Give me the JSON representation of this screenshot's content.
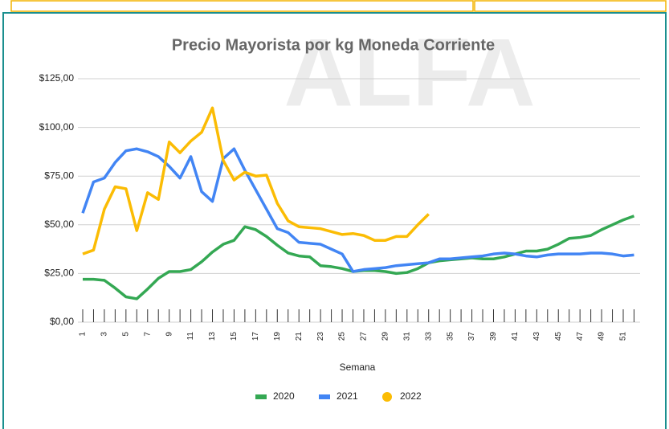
{
  "watermark": "ALFA",
  "chart_data": {
    "type": "line",
    "title": "Precio Mayorista por kg Moneda Corriente",
    "x_label": "Semana",
    "categories": [
      "1",
      null,
      "3",
      null,
      "5",
      null,
      "7",
      null,
      "9",
      null,
      "11",
      null,
      "13",
      null,
      "15",
      null,
      "17",
      null,
      "19",
      null,
      "21",
      null,
      "23",
      null,
      "25",
      null,
      "27",
      null,
      "29",
      null,
      "31",
      null,
      "33",
      null,
      "35",
      null,
      "37",
      null,
      "39",
      null,
      "41",
      null,
      "43",
      null,
      "45",
      null,
      "47",
      null,
      "49",
      null,
      "51",
      null
    ],
    "series": [
      {
        "name": "2020",
        "color": "#34a853",
        "values": [
          22,
          22,
          21.5,
          17.5,
          13,
          12,
          17,
          22.5,
          26,
          26,
          27,
          31,
          36,
          40,
          42,
          49,
          47.5,
          44,
          39.5,
          35.5,
          34,
          33.5,
          29,
          28.5,
          27.5,
          26,
          26.5,
          26.5,
          26,
          25,
          25.5,
          27.5,
          30.5,
          31.5,
          32,
          32.5,
          33,
          32.5,
          32.5,
          33.5,
          35,
          36.5,
          36.5,
          37.5,
          40,
          43,
          43.5,
          44.5,
          47.5,
          50,
          52.5,
          54.5
        ]
      },
      {
        "name": "2021",
        "color": "#4285f4",
        "values": [
          56,
          72,
          74,
          82,
          88,
          89,
          87.5,
          85,
          80,
          74,
          85,
          67,
          62,
          84,
          89,
          78,
          68,
          58,
          48,
          46,
          41,
          40.5,
          40,
          37.5,
          35,
          26,
          27,
          27.5,
          28,
          29,
          29.5,
          30,
          30.5,
          32.5,
          32.5,
          33,
          33.5,
          34,
          35,
          35.5,
          35,
          34,
          33.5,
          34.5,
          35,
          35,
          35,
          35.5,
          35.5,
          35,
          34,
          34.5
        ]
      },
      {
        "name": "2022",
        "color": "#fbbc04",
        "values": [
          35,
          37,
          58,
          69.5,
          68.5,
          47,
          66.5,
          63,
          92.5,
          87,
          93,
          97.5,
          110,
          83,
          73,
          77,
          75,
          75.5,
          61,
          52,
          49,
          48.5,
          48,
          46.5,
          45,
          45.5,
          44.5,
          42,
          42,
          44,
          44,
          50,
          55.5,
          null,
          null,
          null,
          null,
          null,
          null,
          null,
          null,
          null,
          null,
          null,
          null,
          null,
          null,
          null,
          null,
          null,
          null,
          null
        ]
      }
    ],
    "ylim": [
      0,
      125
    ],
    "yticks": [
      {
        "value": 0,
        "label": "$0,00"
      },
      {
        "value": 25,
        "label": "$25,00"
      },
      {
        "value": 50,
        "label": "$50,00"
      },
      {
        "value": 75,
        "label": "$75,00"
      },
      {
        "value": 100,
        "label": "$100,00"
      },
      {
        "value": 125,
        "label": "$125,00"
      }
    ],
    "grid": true,
    "legend": "bottom"
  }
}
